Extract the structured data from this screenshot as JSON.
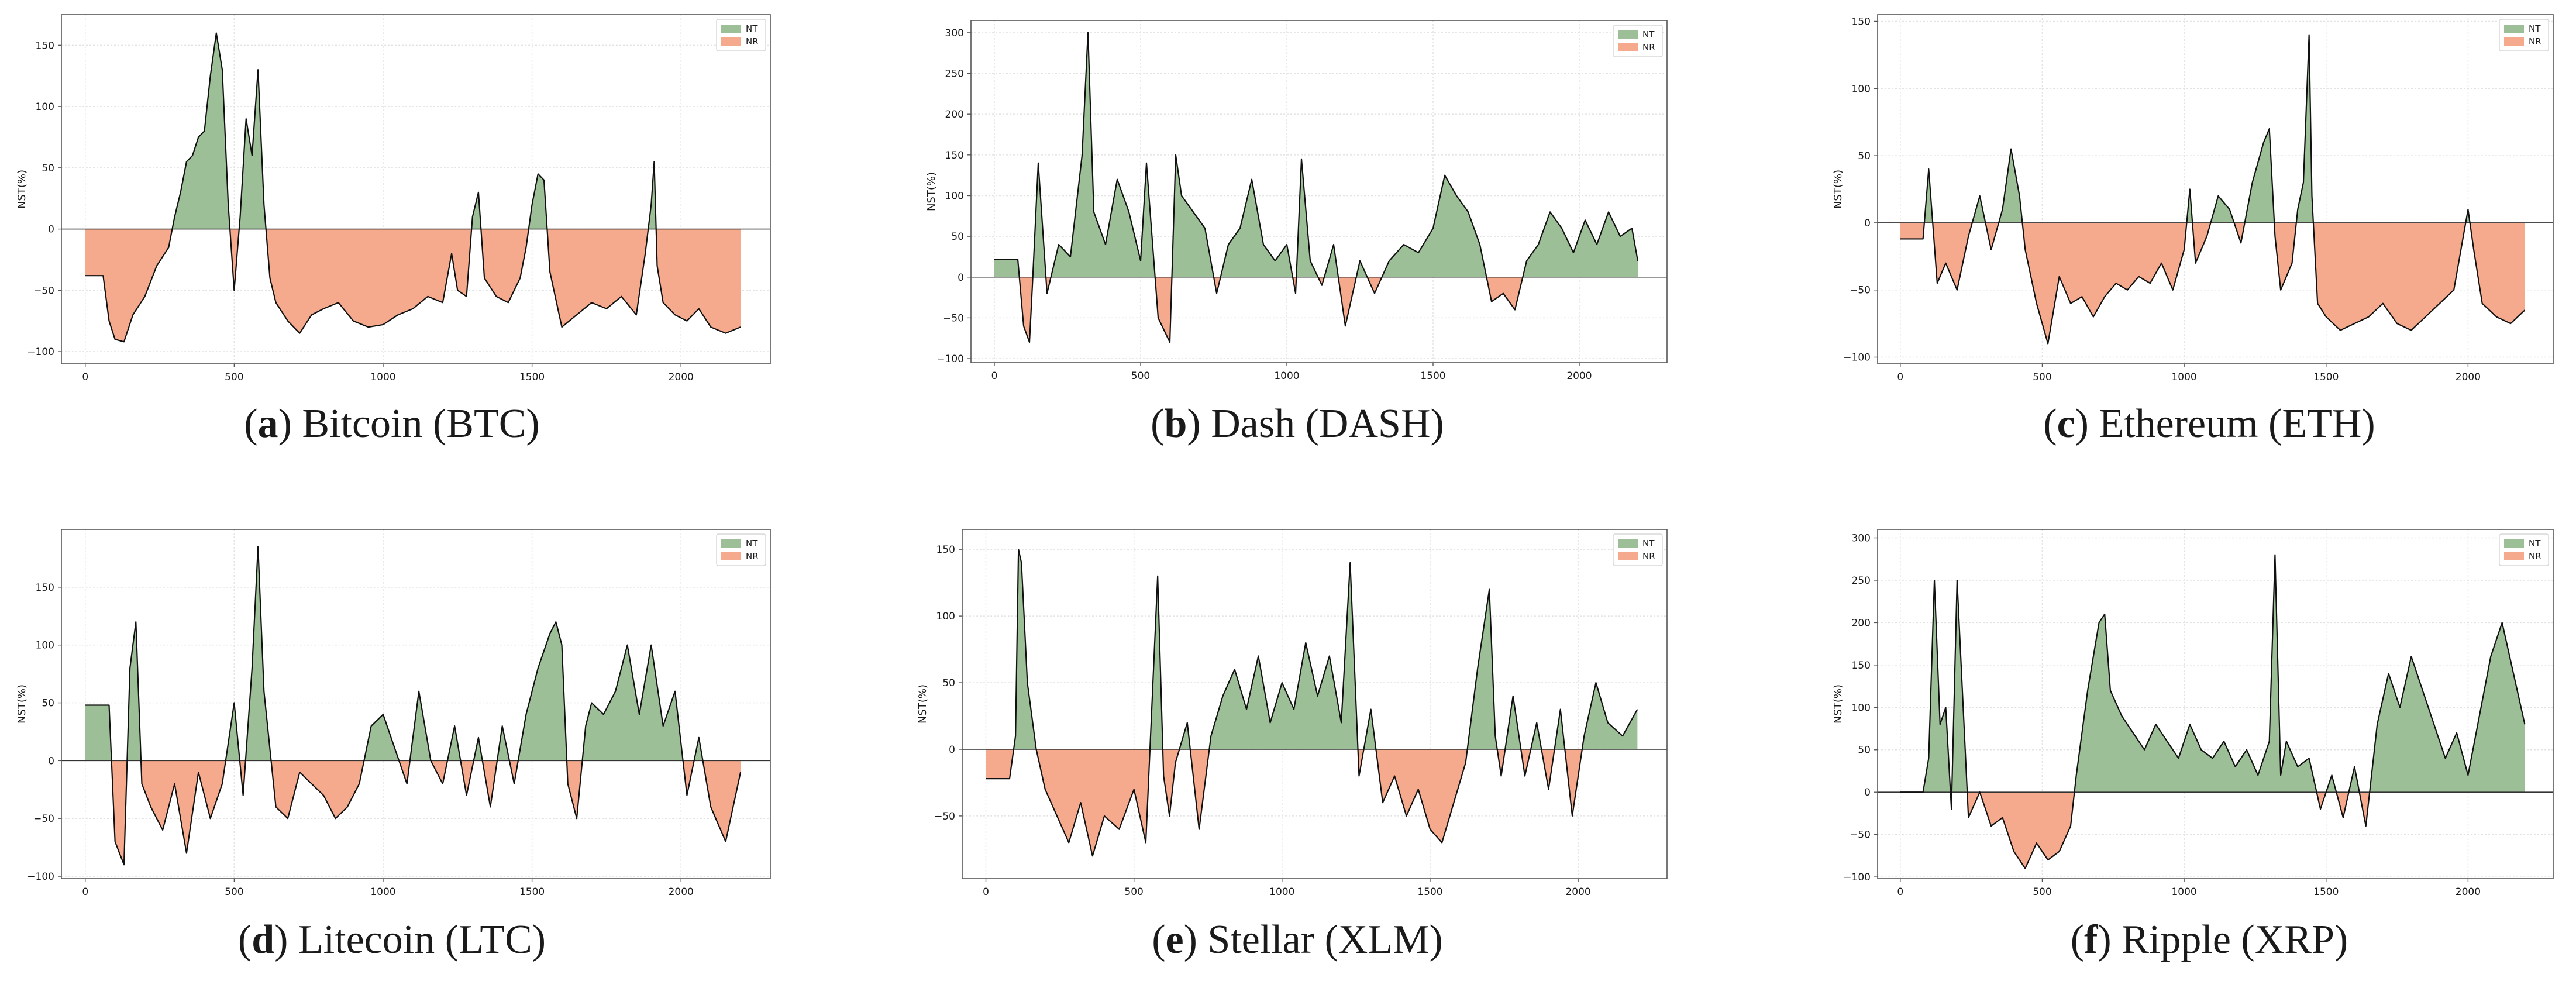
{
  "colors": {
    "nt_fill": "#9dbf97",
    "nr_fill": "#f5a98d",
    "line": "#111111",
    "grid": "#e3e3e3",
    "frame": "#555555"
  },
  "legend": {
    "nt": "NT",
    "nr": "NR"
  },
  "chart_data": [
    {
      "type": "area",
      "title": "Bitcoin (BTC)",
      "caption_letter": "a",
      "caption_text": ") Bitcoin (BTC)",
      "ylabel": "NST(%)",
      "xlim": [
        -80,
        2300
      ],
      "ylim": [
        -110,
        175
      ],
      "xticks": [
        0,
        500,
        1000,
        1500,
        2000
      ],
      "xtick_labels": [
        "0",
        "500",
        "1000",
        "1500",
        "2000"
      ],
      "yticks": [
        -100,
        -50,
        0,
        50,
        100,
        150
      ],
      "ytick_labels": [
        "−100",
        "−50",
        "0",
        "50",
        "100",
        "150"
      ],
      "legend": [
        "NT",
        "NR"
      ],
      "legend_position": "top-right",
      "series_x": [
        0,
        20,
        60,
        80,
        100,
        130,
        160,
        200,
        240,
        280,
        300,
        320,
        340,
        360,
        380,
        400,
        420,
        440,
        460,
        480,
        500,
        510,
        520,
        540,
        560,
        580,
        600,
        620,
        640,
        680,
        720,
        760,
        800,
        850,
        900,
        950,
        1000,
        1050,
        1100,
        1150,
        1200,
        1230,
        1250,
        1280,
        1300,
        1320,
        1340,
        1380,
        1420,
        1460,
        1480,
        1500,
        1520,
        1540,
        1560,
        1600,
        1650,
        1700,
        1750,
        1800,
        1850,
        1880,
        1900,
        1910,
        1920,
        1940,
        1980,
        2020,
        2060,
        2100,
        2150,
        2200
      ],
      "series_y": [
        -38,
        -38,
        -38,
        -75,
        -90,
        -92,
        -70,
        -55,
        -30,
        -15,
        10,
        30,
        55,
        60,
        75,
        80,
        125,
        160,
        130,
        20,
        -50,
        -20,
        10,
        90,
        60,
        130,
        20,
        -40,
        -60,
        -75,
        -85,
        -70,
        -65,
        -60,
        -75,
        -80,
        -78,
        -70,
        -65,
        -55,
        -60,
        -20,
        -50,
        -55,
        10,
        30,
        -40,
        -55,
        -60,
        -40,
        -15,
        20,
        45,
        40,
        -35,
        -80,
        -70,
        -60,
        -65,
        -55,
        -70,
        -20,
        20,
        55,
        -30,
        -60,
        -70,
        -75,
        -65,
        -80,
        -85,
        -80
      ]
    },
    {
      "type": "area",
      "title": "Dash (DASH)",
      "caption_letter": "b",
      "caption_text": ") Dash (DASH)",
      "ylabel": "NST(%)",
      "xlim": [
        -80,
        2300
      ],
      "ylim": [
        -105,
        315
      ],
      "xticks": [
        0,
        500,
        1000,
        1500,
        2000
      ],
      "xtick_labels": [
        "0",
        "500",
        "1000",
        "1500",
        "2000"
      ],
      "yticks": [
        -100,
        -50,
        0,
        50,
        100,
        150,
        200,
        250,
        300
      ],
      "ytick_labels": [
        "−100",
        "−50",
        "0",
        "50",
        "100",
        "150",
        "200",
        "250",
        "300"
      ],
      "legend": [
        "NT",
        "NR"
      ],
      "legend_position": "top-right",
      "series_x": [
        0,
        20,
        80,
        100,
        120,
        130,
        150,
        180,
        220,
        260,
        300,
        320,
        340,
        360,
        380,
        420,
        460,
        500,
        520,
        560,
        600,
        620,
        640,
        680,
        720,
        760,
        800,
        840,
        880,
        920,
        960,
        1000,
        1030,
        1050,
        1080,
        1120,
        1160,
        1200,
        1250,
        1300,
        1350,
        1400,
        1450,
        1500,
        1540,
        1580,
        1620,
        1660,
        1700,
        1740,
        1780,
        1820,
        1860,
        1900,
        1940,
        1980,
        2020,
        2060,
        2100,
        2140,
        2180,
        2200
      ],
      "series_y": [
        22,
        22,
        22,
        -60,
        -80,
        -10,
        140,
        -20,
        40,
        25,
        150,
        300,
        80,
        60,
        40,
        120,
        80,
        20,
        140,
        -50,
        -80,
        150,
        100,
        80,
        60,
        -20,
        40,
        60,
        120,
        40,
        20,
        40,
        -20,
        145,
        20,
        -10,
        40,
        -60,
        20,
        -20,
        20,
        40,
        30,
        60,
        125,
        100,
        80,
        40,
        -30,
        -20,
        -40,
        20,
        40,
        80,
        60,
        30,
        70,
        40,
        80,
        50,
        60,
        20
      ]
    },
    {
      "type": "area",
      "title": "Ethereum (ETH)",
      "caption_letter": "c",
      "caption_text": ") Ethereum (ETH)",
      "ylabel": "NST(%)",
      "xlim": [
        -80,
        2300
      ],
      "ylim": [
        -105,
        155
      ],
      "xticks": [
        0,
        500,
        1000,
        1500,
        2000
      ],
      "xtick_labels": [
        "0",
        "500",
        "1000",
        "1500",
        "2000"
      ],
      "yticks": [
        -100,
        -50,
        0,
        50,
        100,
        150
      ],
      "ytick_labels": [
        "−100",
        "−50",
        "0",
        "50",
        "100",
        "150"
      ],
      "legend": [
        "NT",
        "NR"
      ],
      "legend_position": "top-right",
      "series_x": [
        0,
        60,
        80,
        100,
        130,
        160,
        200,
        240,
        280,
        320,
        360,
        390,
        420,
        440,
        480,
        520,
        560,
        600,
        640,
        680,
        720,
        760,
        800,
        840,
        880,
        920,
        960,
        1000,
        1020,
        1040,
        1080,
        1120,
        1160,
        1200,
        1240,
        1280,
        1300,
        1320,
        1340,
        1380,
        1400,
        1420,
        1440,
        1450,
        1470,
        1500,
        1550,
        1600,
        1650,
        1700,
        1750,
        1800,
        1850,
        1900,
        1950,
        2000,
        2020,
        2050,
        2100,
        2150,
        2200
      ],
      "series_y": [
        -12,
        -12,
        -12,
        40,
        -45,
        -30,
        -50,
        -10,
        20,
        -20,
        10,
        55,
        20,
        -20,
        -60,
        -90,
        -40,
        -60,
        -55,
        -70,
        -55,
        -45,
        -50,
        -40,
        -45,
        -30,
        -50,
        -20,
        25,
        -30,
        -10,
        20,
        10,
        -15,
        30,
        60,
        70,
        -10,
        -50,
        -30,
        10,
        30,
        140,
        20,
        -60,
        -70,
        -80,
        -75,
        -70,
        -60,
        -75,
        -80,
        -70,
        -60,
        -50,
        10,
        -20,
        -60,
        -70,
        -75,
        -65
      ]
    },
    {
      "type": "area",
      "title": "Litecoin (LTC)",
      "caption_letter": "d",
      "caption_text": ") Litecoin (LTC)",
      "ylabel": "NST(%)",
      "xlim": [
        -80,
        2300
      ],
      "ylim": [
        -102,
        200
      ],
      "xticks": [
        0,
        500,
        1000,
        1500,
        2000
      ],
      "xtick_labels": [
        "0",
        "500",
        "1000",
        "1500",
        "2000"
      ],
      "yticks": [
        -100,
        -50,
        0,
        50,
        100,
        150
      ],
      "ytick_labels": [
        "−100",
        "−50",
        "0",
        "50",
        "100",
        "150"
      ],
      "legend": [
        "NT",
        "NR"
      ],
      "legend_position": "top-right",
      "series_x": [
        0,
        60,
        80,
        100,
        130,
        150,
        170,
        190,
        220,
        260,
        300,
        340,
        380,
        420,
        460,
        500,
        530,
        560,
        580,
        600,
        640,
        680,
        720,
        760,
        800,
        840,
        880,
        920,
        960,
        1000,
        1040,
        1080,
        1120,
        1160,
        1200,
        1240,
        1280,
        1320,
        1360,
        1400,
        1440,
        1480,
        1520,
        1560,
        1580,
        1600,
        1620,
        1650,
        1680,
        1700,
        1740,
        1780,
        1820,
        1860,
        1900,
        1940,
        1980,
        2020,
        2060,
        2100,
        2150,
        2200
      ],
      "series_y": [
        48,
        48,
        48,
        -70,
        -90,
        80,
        120,
        -20,
        -40,
        -60,
        -20,
        -80,
        -10,
        -50,
        -20,
        50,
        -30,
        80,
        185,
        60,
        -40,
        -50,
        -10,
        -20,
        -30,
        -50,
        -40,
        -20,
        30,
        40,
        10,
        -20,
        60,
        0,
        -20,
        30,
        -30,
        20,
        -40,
        30,
        -20,
        40,
        80,
        110,
        120,
        100,
        -20,
        -50,
        30,
        50,
        40,
        60,
        100,
        40,
        100,
        30,
        60,
        -30,
        20,
        -40,
        -70,
        -10
      ]
    },
    {
      "type": "area",
      "title": "Stellar (XLM)",
      "caption_letter": "e",
      "caption_text": ") Stellar (XLM)",
      "ylabel": "NST(%)",
      "xlim": [
        -80,
        2300
      ],
      "ylim": [
        -97,
        165
      ],
      "xticks": [
        0,
        500,
        1000,
        1500,
        2000
      ],
      "xtick_labels": [
        "0",
        "500",
        "1000",
        "1500",
        "2000"
      ],
      "yticks": [
        -50,
        0,
        50,
        100,
        150
      ],
      "ytick_labels": [
        "−50",
        "0",
        "50",
        "100",
        "150"
      ],
      "legend": [
        "NT",
        "NR"
      ],
      "legend_position": "top-right",
      "series_x": [
        0,
        60,
        80,
        100,
        110,
        120,
        140,
        170,
        200,
        240,
        280,
        320,
        360,
        400,
        450,
        500,
        540,
        580,
        600,
        620,
        640,
        680,
        720,
        760,
        800,
        840,
        880,
        920,
        960,
        1000,
        1040,
        1080,
        1120,
        1160,
        1200,
        1230,
        1260,
        1300,
        1340,
        1380,
        1420,
        1460,
        1500,
        1540,
        1580,
        1620,
        1660,
        1700,
        1720,
        1740,
        1780,
        1820,
        1860,
        1900,
        1940,
        1980,
        2020,
        2060,
        2100,
        2150,
        2200
      ],
      "series_y": [
        -22,
        -22,
        -22,
        10,
        150,
        140,
        50,
        0,
        -30,
        -50,
        -70,
        -40,
        -80,
        -50,
        -60,
        -30,
        -70,
        130,
        -20,
        -50,
        -10,
        20,
        -60,
        10,
        40,
        60,
        30,
        70,
        20,
        50,
        30,
        80,
        40,
        70,
        20,
        140,
        -20,
        30,
        -40,
        -20,
        -50,
        -30,
        -60,
        -70,
        -40,
        -10,
        60,
        120,
        10,
        -20,
        40,
        -20,
        20,
        -30,
        30,
        -50,
        10,
        50,
        20,
        10,
        30
      ]
    },
    {
      "type": "area",
      "title": "Ripple (XRP)",
      "caption_letter": "f",
      "caption_text": ") Ripple (XRP)",
      "ylabel": "NST(%)",
      "xlim": [
        -80,
        2300
      ],
      "ylim": [
        -102,
        310
      ],
      "xticks": [
        0,
        500,
        1000,
        1500,
        2000
      ],
      "xtick_labels": [
        "0",
        "500",
        "1000",
        "1500",
        "2000"
      ],
      "yticks": [
        -100,
        -50,
        0,
        50,
        100,
        150,
        200,
        250,
        300
      ],
      "ytick_labels": [
        "−100",
        "−50",
        "0",
        "50",
        "100",
        "150",
        "200",
        "250",
        "300"
      ],
      "legend": [
        "NT",
        "NR"
      ],
      "legend_position": "top-right",
      "series_x": [
        0,
        60,
        80,
        100,
        120,
        140,
        160,
        180,
        200,
        240,
        280,
        320,
        360,
        400,
        440,
        480,
        520,
        560,
        600,
        620,
        660,
        700,
        720,
        740,
        780,
        820,
        860,
        900,
        940,
        980,
        1020,
        1060,
        1100,
        1140,
        1180,
        1220,
        1260,
        1300,
        1320,
        1340,
        1360,
        1400,
        1440,
        1480,
        1520,
        1560,
        1600,
        1640,
        1680,
        1720,
        1760,
        1800,
        1840,
        1880,
        1920,
        1960,
        2000,
        2040,
        2080,
        2120,
        2160,
        2200
      ],
      "series_y": [
        0,
        0,
        0,
        40,
        250,
        80,
        100,
        -20,
        250,
        -30,
        0,
        -40,
        -30,
        -70,
        -90,
        -60,
        -80,
        -70,
        -40,
        20,
        120,
        200,
        210,
        120,
        90,
        70,
        50,
        80,
        60,
        40,
        80,
        50,
        40,
        60,
        30,
        50,
        20,
        60,
        280,
        20,
        60,
        30,
        40,
        -20,
        20,
        -30,
        30,
        -40,
        80,
        140,
        100,
        160,
        120,
        80,
        40,
        70,
        20,
        90,
        160,
        200,
        140,
        80
      ]
    }
  ]
}
